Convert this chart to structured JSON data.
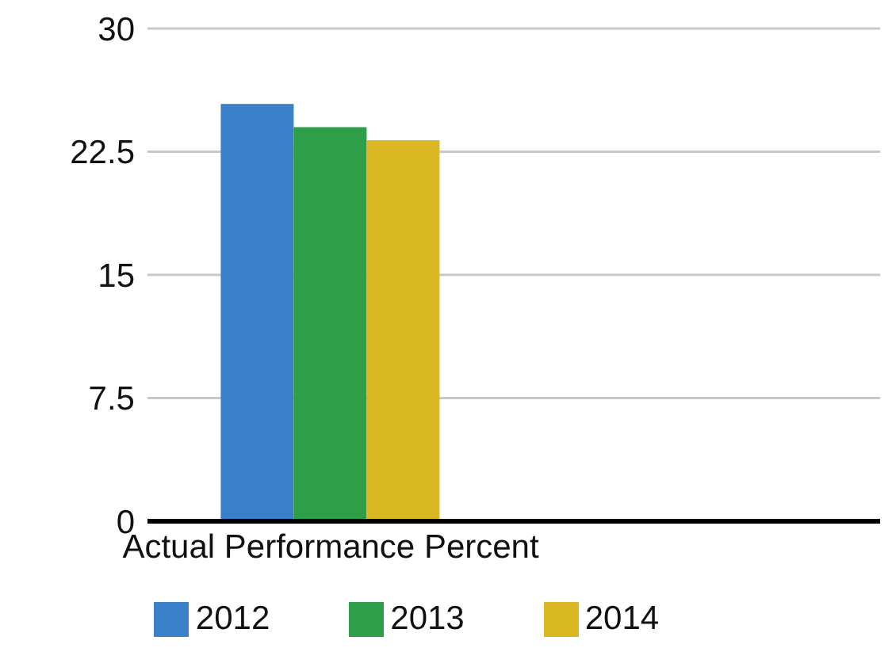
{
  "chart_data": {
    "type": "bar",
    "categories": [
      "Actual Performance Percent",
      null
    ],
    "series": [
      {
        "name": "2012",
        "color": "#3a80c8",
        "values": [
          25.4,
          null
        ]
      },
      {
        "name": "2013",
        "color": "#2e9e48",
        "values": [
          24.0,
          null
        ]
      },
      {
        "name": "2014",
        "color": "#d9b824",
        "values": [
          23.2,
          null
        ]
      }
    ],
    "ylim": [
      0,
      30
    ],
    "yticks": [
      0,
      7.5,
      15,
      22.5,
      30
    ],
    "grid": "y",
    "legend": "bottom"
  }
}
